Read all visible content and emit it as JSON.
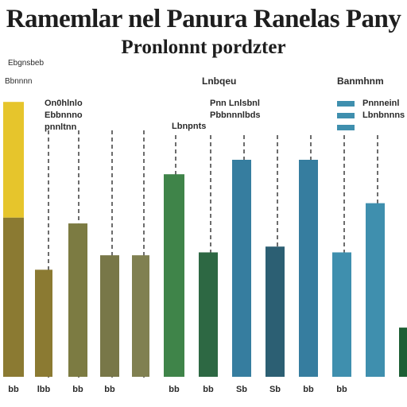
{
  "chart_data": {
    "type": "bar",
    "title": "Ramemlar nel Panura Ranelas Pany",
    "subtitle": "Pronlonnt pordzter",
    "ylim": [
      0,
      100
    ],
    "grid": false,
    "categories": [
      "",
      "",
      "",
      "",
      "",
      "",
      "",
      "",
      "",
      "",
      "",
      ""
    ],
    "tick_labels": [
      "bb",
      "lbb",
      "bb",
      "bb",
      "",
      "bb",
      "bb",
      "Sb",
      "Sb",
      "bb",
      "bb",
      ""
    ],
    "bar_values": [
      55,
      37,
      53,
      42,
      42,
      70,
      43,
      75,
      45,
      75,
      43,
      60
    ],
    "highlight": {
      "index": 0,
      "value": 95,
      "color": "#e6c52c"
    },
    "bar_colors": [
      "#8b7a32",
      "#8b7a32",
      "#7c7b42",
      "#787748",
      "#808051",
      "#3f8449",
      "#2d6843",
      "#367d9f",
      "#2c5f73",
      "#367d9f",
      "#3f8fae",
      "#3f8fae"
    ],
    "extra_bar": {
      "value": 17,
      "color": "#1d5f35"
    },
    "section_labels": [
      "Lnbqeu",
      "Banmhnm"
    ],
    "column_labels": [
      [
        "On0hlnlo",
        "Ebbnnno",
        "pnnltnn"
      ],
      [
        "Lbnpnts"
      ],
      [
        "Pnn Lnlsbnl",
        "Pbbnnnlbds"
      ],
      [
        "Pnnneinl",
        "Lbnbnnns"
      ]
    ],
    "left_labels": [
      "Ebgnsbeb",
      "Bbnnnn"
    ],
    "legend_colors": [
      "#3f8fae",
      "#3f8fae",
      "#3f8fae"
    ]
  }
}
